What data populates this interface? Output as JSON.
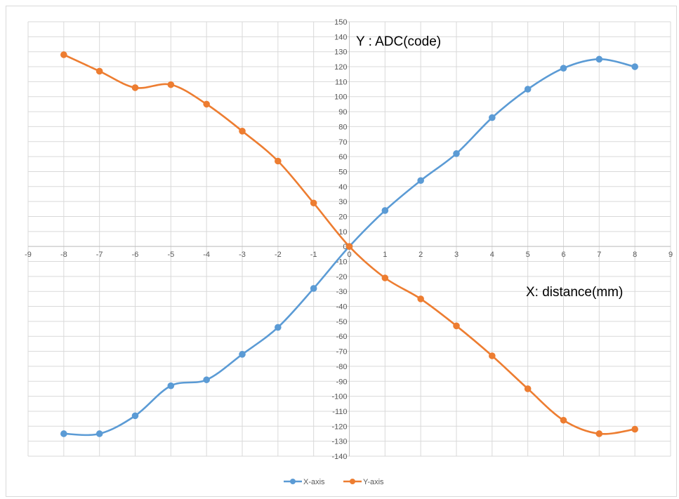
{
  "chart_data": {
    "type": "line",
    "title": "",
    "xlabel": "",
    "ylabel": "",
    "annotations": [
      "Y : ADC(code)",
      "X: distance(mm)"
    ],
    "xlim": [
      -9,
      9
    ],
    "ylim": [
      -140,
      150
    ],
    "x_ticks": [
      -9,
      -8,
      -7,
      -6,
      -5,
      -4,
      -3,
      -2,
      -1,
      0,
      1,
      2,
      3,
      4,
      5,
      6,
      7,
      8,
      9
    ],
    "y_ticks": [
      -140,
      -130,
      -120,
      -110,
      -100,
      -90,
      -80,
      -70,
      -60,
      -50,
      -40,
      -30,
      -20,
      -10,
      0,
      10,
      20,
      30,
      40,
      50,
      60,
      70,
      80,
      90,
      100,
      110,
      120,
      130,
      140,
      150
    ],
    "grid": true,
    "smooth": true,
    "legend": "bottom",
    "x": [
      -8,
      -7,
      -6,
      -5,
      -4,
      -3,
      -2,
      -1,
      0,
      1,
      2,
      3,
      4,
      5,
      6,
      7,
      8
    ],
    "series": [
      {
        "name": "X-axis",
        "color": "#5b9bd5",
        "values": [
          -125,
          -125,
          -113,
          -93,
          -89,
          -72,
          -54,
          -28,
          0,
          24,
          44,
          62,
          86,
          105,
          119,
          125,
          120
        ]
      },
      {
        "name": "Y-axis",
        "color": "#ed7d31",
        "values": [
          128,
          117,
          106,
          108,
          95,
          77,
          57,
          29,
          0,
          -21,
          -35,
          -53,
          -73,
          -95,
          -116,
          -125,
          -122
        ]
      }
    ]
  }
}
